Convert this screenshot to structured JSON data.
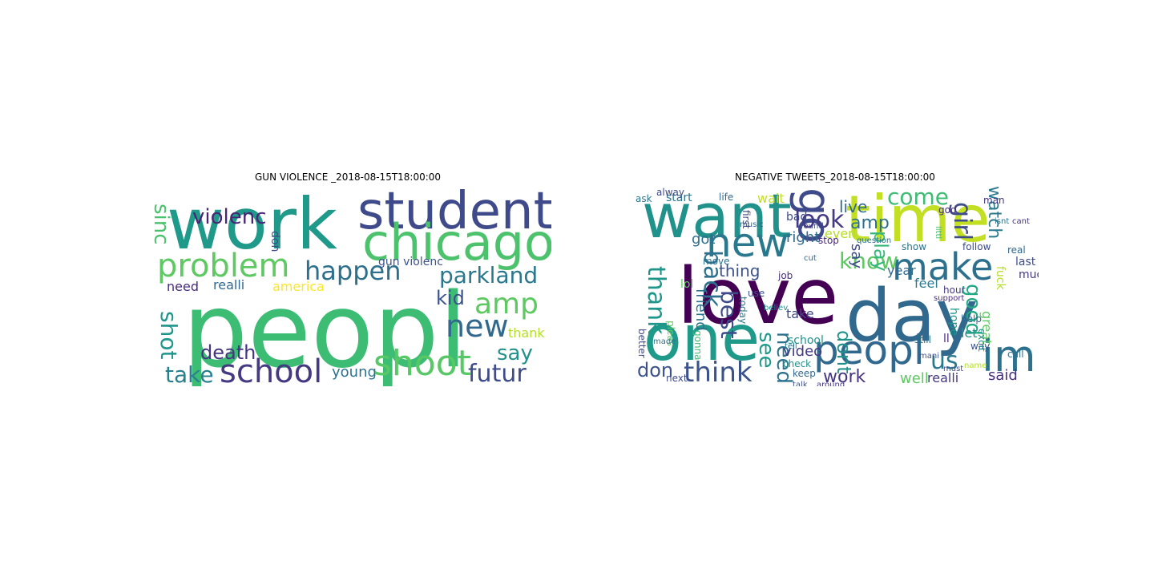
{
  "panels": {
    "left": {
      "title": "GUN VIOLENCE _2018-08-15T18:00:00",
      "words": [
        {
          "text": "peopl",
          "color": "#3dbc74"
        },
        {
          "text": "work",
          "color": "#1f9a8a"
        },
        {
          "text": "student",
          "color": "#3e4a89"
        },
        {
          "text": "chicago",
          "color": "#4cc26c"
        },
        {
          "text": "problem",
          "color": "#5ec962"
        },
        {
          "text": "happen",
          "color": "#2d708e"
        },
        {
          "text": "school",
          "color": "#443983"
        },
        {
          "text": "shoot",
          "color": "#58c765"
        },
        {
          "text": "amp",
          "color": "#5ec962"
        },
        {
          "text": "new",
          "color": "#31688e"
        },
        {
          "text": "parkland",
          "color": "#2a788e"
        },
        {
          "text": "futur",
          "color": "#3e4c8a"
        },
        {
          "text": "violenc",
          "color": "#482576"
        },
        {
          "text": "sinc",
          "color": "#4ac16d"
        },
        {
          "text": "shot",
          "color": "#1f968b"
        },
        {
          "text": "take",
          "color": "#27808e"
        },
        {
          "text": "death",
          "color": "#453581"
        },
        {
          "text": "say",
          "color": "#21918c"
        },
        {
          "text": "kid",
          "color": "#3b528b"
        },
        {
          "text": "thank",
          "color": "#b5de2b"
        },
        {
          "text": "young",
          "color": "#2c728e"
        },
        {
          "text": "need",
          "color": "#472d7b"
        },
        {
          "text": "realli",
          "color": "#31688e"
        },
        {
          "text": "america",
          "color": "#fde725"
        },
        {
          "text": "gun violenc",
          "color": "#3b528b"
        },
        {
          "text": "don",
          "color": "#3e4a89"
        }
      ]
    },
    "right": {
      "title": "NEGATIVE TWEETS_2018-08-15T18:00:00",
      "words": [
        {
          "text": "love",
          "color": "#440154"
        },
        {
          "text": "day",
          "color": "#31688e"
        },
        {
          "text": "want",
          "color": "#21918c"
        },
        {
          "text": "time",
          "color": "#c2df23"
        },
        {
          "text": "one",
          "color": "#1f9a8a"
        },
        {
          "text": "peopl",
          "color": "#31688e"
        },
        {
          "text": "im",
          "color": "#2c728e"
        },
        {
          "text": "new",
          "color": "#2a788e"
        },
        {
          "text": "go",
          "color": "#3e4a89"
        },
        {
          "text": "make",
          "color": "#2d708e"
        },
        {
          "text": "know",
          "color": "#5ec962"
        },
        {
          "text": "think",
          "color": "#3b528b"
        },
        {
          "text": "look",
          "color": "#443983"
        },
        {
          "text": "come",
          "color": "#3dbc74"
        },
        {
          "text": "back",
          "color": "#2c728e"
        },
        {
          "text": "best",
          "color": "#3e4a89"
        },
        {
          "text": "thank",
          "color": "#1f968b"
        },
        {
          "text": "girl",
          "color": "#3e4c8a"
        },
        {
          "text": "good",
          "color": "#22a884"
        },
        {
          "text": "us",
          "color": "#2a788e"
        },
        {
          "text": "work",
          "color": "#453581"
        },
        {
          "text": "see",
          "color": "#1f9a8a"
        },
        {
          "text": "need",
          "color": "#2c728e"
        },
        {
          "text": "dont",
          "color": "#21918c"
        },
        {
          "text": "don",
          "color": "#3b528b"
        },
        {
          "text": "amp",
          "color": "#2d708e"
        },
        {
          "text": "live",
          "color": "#31688e"
        },
        {
          "text": "say",
          "color": "#3e4a89"
        },
        {
          "text": "play",
          "color": "#35b779"
        },
        {
          "text": "watch",
          "color": "#2a788e"
        },
        {
          "text": "video",
          "color": "#443983"
        },
        {
          "text": "said",
          "color": "#472d7b"
        },
        {
          "text": "well",
          "color": "#5ec962"
        },
        {
          "text": "thing",
          "color": "#3b528b"
        },
        {
          "text": "got",
          "color": "#2d708e"
        },
        {
          "text": "year",
          "color": "#31688e"
        },
        {
          "text": "let",
          "color": "#21918c"
        },
        {
          "text": "ll",
          "color": "#472d7b"
        },
        {
          "text": "realli",
          "color": "#453581"
        },
        {
          "text": "great",
          "color": "#5ec962"
        },
        {
          "text": "friend",
          "color": "#2c728e"
        },
        {
          "text": "even",
          "color": "#b5de2b"
        },
        {
          "text": "right",
          "color": "#31688e"
        },
        {
          "text": "take",
          "color": "#3e4a89"
        },
        {
          "text": "school",
          "color": "#21918c"
        },
        {
          "text": "feel",
          "color": "#2a788e"
        },
        {
          "text": "last",
          "color": "#3e4c8a"
        },
        {
          "text": "much",
          "color": "#443983"
        },
        {
          "text": "way",
          "color": "#3b528b"
        },
        {
          "text": "call",
          "color": "#2d708e"
        },
        {
          "text": "stop",
          "color": "#482576"
        },
        {
          "text": "bad",
          "color": "#3e4a89"
        },
        {
          "text": "start",
          "color": "#2c728e"
        },
        {
          "text": "life",
          "color": "#31688e"
        },
        {
          "text": "wait",
          "color": "#c2df23"
        },
        {
          "text": "ask",
          "color": "#2a788e"
        },
        {
          "text": "alway",
          "color": "#3e4a89"
        },
        {
          "text": "man",
          "color": "#453581"
        },
        {
          "text": "god",
          "color": "#472d7b"
        },
        {
          "text": "keep",
          "color": "#31688e"
        },
        {
          "text": "talk",
          "color": "#3b528b"
        },
        {
          "text": "still",
          "color": "#2d708e"
        },
        {
          "text": "lol",
          "color": "#5ec962"
        },
        {
          "text": "next",
          "color": "#3e4a89"
        },
        {
          "text": "hope",
          "color": "#1f968b"
        },
        {
          "text": "help",
          "color": "#31688e"
        },
        {
          "text": "fuck",
          "color": "#b5de2b"
        },
        {
          "text": "excit",
          "color": "#21918c"
        },
        {
          "text": "follow",
          "color": "#3e4c8a"
        },
        {
          "text": "show",
          "color": "#2c728e"
        },
        {
          "text": "hour",
          "color": "#443983"
        },
        {
          "text": "job",
          "color": "#472d7b"
        },
        {
          "text": "use",
          "color": "#3b528b"
        },
        {
          "text": "today",
          "color": "#2a788e"
        },
        {
          "text": "music",
          "color": "#31688e"
        },
        {
          "text": "first",
          "color": "#3e4a89"
        },
        {
          "text": "move",
          "color": "#2d708e"
        },
        {
          "text": "pleas",
          "color": "#5ec962"
        },
        {
          "text": "gonna",
          "color": "#3dbc74"
        },
        {
          "text": "better",
          "color": "#3e4c8a"
        },
        {
          "text": "made",
          "color": "#2c728e"
        },
        {
          "text": "around",
          "color": "#453581"
        },
        {
          "text": "check",
          "color": "#21918c"
        },
        {
          "text": "tell",
          "color": "#2a788e"
        },
        {
          "text": "real",
          "color": "#31688e"
        },
        {
          "text": "mani",
          "color": "#3b528b"
        },
        {
          "text": "support",
          "color": "#472d7b"
        },
        {
          "text": "question",
          "color": "#2d708e"
        },
        {
          "text": "found",
          "color": "#3e4a89"
        },
        {
          "text": "cut",
          "color": "#31688e"
        },
        {
          "text": "isnt",
          "color": "#2c728e"
        },
        {
          "text": "cant",
          "color": "#453581"
        },
        {
          "text": "vote",
          "color": "#5ec962"
        },
        {
          "text": "name",
          "color": "#b5de2b"
        },
        {
          "text": "believ",
          "color": "#21918c"
        },
        {
          "text": "must",
          "color": "#3e4c8a"
        },
        {
          "text": "littl",
          "color": "#3dbc74"
        }
      ]
    }
  }
}
